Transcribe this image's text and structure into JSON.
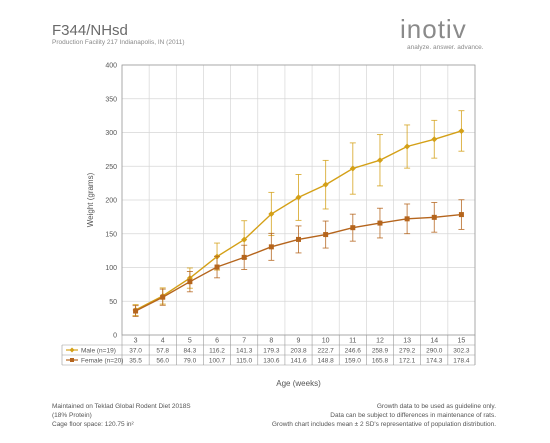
{
  "header": {
    "title": "F344/NHsd",
    "subtitle": "Production Facility 217 Indianapolis, IN (2011)"
  },
  "logo": {
    "name": "inotiv",
    "tagline": "analyze. answer. advance."
  },
  "chart_data": {
    "type": "line",
    "xlabel": "Age (weeks)",
    "ylabel": "Weight (grams)",
    "ylim": [
      0,
      400
    ],
    "yticks": [
      0,
      50,
      100,
      150,
      200,
      250,
      300,
      350,
      400
    ],
    "categories": [
      "3",
      "4",
      "5",
      "6",
      "7",
      "8",
      "9",
      "10",
      "11",
      "12",
      "13",
      "14",
      "15"
    ],
    "grid": true,
    "series": [
      {
        "name": "Male (n=19)",
        "color": "#d4a017",
        "marker": "diamond",
        "values": [
          37.0,
          57.8,
          84.3,
          116.2,
          141.3,
          179.3,
          203.8,
          222.7,
          246.6,
          258.9,
          279.2,
          290.0,
          302.3
        ],
        "labels": [
          "37.0",
          "57.8",
          "84.3",
          "116.2",
          "141.3",
          "179.3",
          "203.8",
          "222.7",
          "246.6",
          "258.9",
          "279.2",
          "290.0",
          "302.3"
        ],
        "error": [
          8,
          12,
          15,
          20,
          28,
          32,
          34,
          36,
          38,
          38,
          32,
          28,
          30
        ]
      },
      {
        "name": "Female (n=20)",
        "color": "#b5651d",
        "marker": "square",
        "values": [
          35.5,
          56.0,
          79.0,
          100.7,
          115.0,
          130.6,
          141.6,
          148.8,
          159.0,
          165.8,
          172.1,
          174.3,
          178.4
        ],
        "labels": [
          "35.5",
          "56.0",
          "79.0",
          "100.7",
          "115.0",
          "130.6",
          "141.6",
          "148.8",
          "159.0",
          "165.8",
          "172.1",
          "174.3",
          "178.4"
        ],
        "error": [
          8,
          12,
          15,
          16,
          18,
          20,
          20,
          20,
          20,
          22,
          22,
          22,
          22
        ]
      }
    ]
  },
  "footer": {
    "left_line1": "Maintained on Teklad Global Rodent Diet 2018S",
    "left_line2": "(18% Protein)",
    "left_line3": "Cage floor space: 120.75 in²",
    "right_line1": "Growth data to be used as guideline only.",
    "right_line2": "Data can be subject to differences in maintenance of rats.",
    "right_line3": "Growth chart includes mean ± 2 SD's representative of population distribution."
  }
}
